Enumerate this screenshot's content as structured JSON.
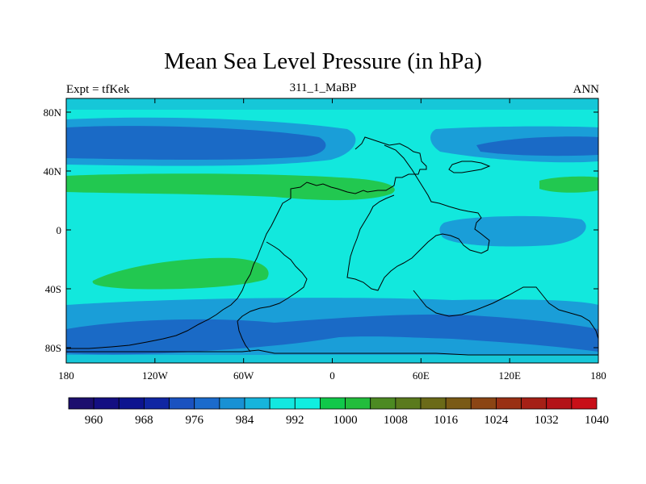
{
  "title": "Mean Sea Level Pressure (in hPa)",
  "left_label": "Expt = tfKek",
  "center_label": "311_1_MaBP",
  "right_label": "ANN",
  "x_ticks": [
    "180",
    "120W",
    "60W",
    "0",
    "60E",
    "120E",
    "180"
  ],
  "y_ticks": [
    "80N",
    "40N",
    "0",
    "40S",
    "80S"
  ],
  "colorbar": {
    "labels": [
      "960",
      "968",
      "976",
      "984",
      "992",
      "1000",
      "1008",
      "1016",
      "1024",
      "1032",
      "1040"
    ],
    "colors": [
      "#1c0f6e",
      "#140f82",
      "#0d148f",
      "#1026a3",
      "#1a52c0",
      "#1b6bcc",
      "#1891d4",
      "#16b4dc",
      "#12e8e0",
      "#10eee0",
      "#11c84a",
      "#22bd3c",
      "#4c8a22",
      "#5a7a1d",
      "#6b6a18",
      "#7a5a15",
      "#8b4514",
      "#993014",
      "#a52016",
      "#b31318",
      "#c80f18"
    ]
  },
  "map_colors": {
    "background": "#12e8dd",
    "band_984": "#1a9ed8",
    "band_976": "#1a6ac6",
    "band_1008": "#22c850"
  }
}
